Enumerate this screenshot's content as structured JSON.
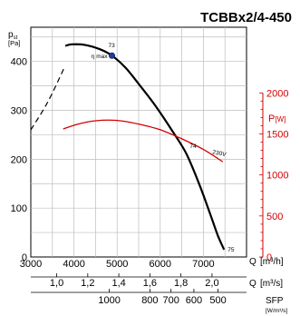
{
  "chart_data": {
    "type": "line",
    "title": "TCBBx2/4-450",
    "left_axis": {
      "label": "p",
      "label_sub": "st",
      "unit": "[Pa]",
      "ylim": [
        0,
        470
      ],
      "ticks": [
        0,
        100,
        200,
        300,
        400
      ]
    },
    "right_axis": {
      "label": "P",
      "unit": "[W]",
      "ylim": [
        0,
        2800
      ],
      "ticks": [
        0,
        500,
        1000,
        1500,
        2000
      ]
    },
    "x_axis": {
      "label": "Q",
      "unit": "[m³/h]",
      "xlim": [
        3000,
        8000
      ],
      "ticks": [
        3000,
        4000,
        5000,
        6000,
        7000
      ]
    },
    "x_axis_2": {
      "label": "Q",
      "unit": "[m³/s]",
      "ticks": [
        1.0,
        1.2,
        1.4,
        1.6,
        1.8,
        2.0
      ]
    },
    "x_axis_3": {
      "label": "SFP",
      "unit": "[W/m³/s]",
      "ticks": [
        1000,
        800,
        700,
        600,
        500
      ],
      "tick_q_m3h": [
        4820,
        5760,
        6250,
        6780,
        7340
      ]
    },
    "series": [
      {
        "name": "",
        "axis": "left",
        "style": "dashed",
        "color": "#000000",
        "points": [
          [
            3000,
            260
          ],
          [
            3400,
            318
          ],
          [
            3780,
            388
          ]
        ]
      },
      {
        "name": "",
        "axis": "left",
        "style": "solid",
        "color": "#000000",
        "points": [
          [
            3800,
            432
          ],
          [
            3950,
            435
          ],
          [
            4250,
            434
          ],
          [
            4600,
            425
          ],
          [
            4880,
            412
          ],
          [
            5200,
            387
          ],
          [
            5500,
            354
          ],
          [
            5900,
            308
          ],
          [
            6300,
            255
          ],
          [
            6600,
            212
          ],
          [
            6900,
            150
          ],
          [
            7150,
            90
          ],
          [
            7330,
            45
          ],
          [
            7480,
            15
          ]
        ]
      },
      {
        "name": "230V",
        "axis": "right",
        "style": "solid",
        "color": "#d40000",
        "points": [
          [
            3750,
            1560
          ],
          [
            4100,
            1620
          ],
          [
            4500,
            1660
          ],
          [
            5000,
            1665
          ],
          [
            5500,
            1620
          ],
          [
            6000,
            1550
          ],
          [
            6500,
            1440
          ],
          [
            7000,
            1310
          ],
          [
            7450,
            1160
          ]
        ]
      }
    ],
    "annotations": [
      {
        "text": "73",
        "q": 4880,
        "p": 412
      },
      {
        "text": "η max",
        "q": 4880,
        "p": 412
      },
      {
        "text": "74",
        "q": 6600,
        "p": 212
      },
      {
        "text": "75",
        "q": 7480,
        "p": 15
      },
      {
        "text": "230V",
        "q": 7200,
        "power": 1250
      }
    ],
    "grid": true
  }
}
